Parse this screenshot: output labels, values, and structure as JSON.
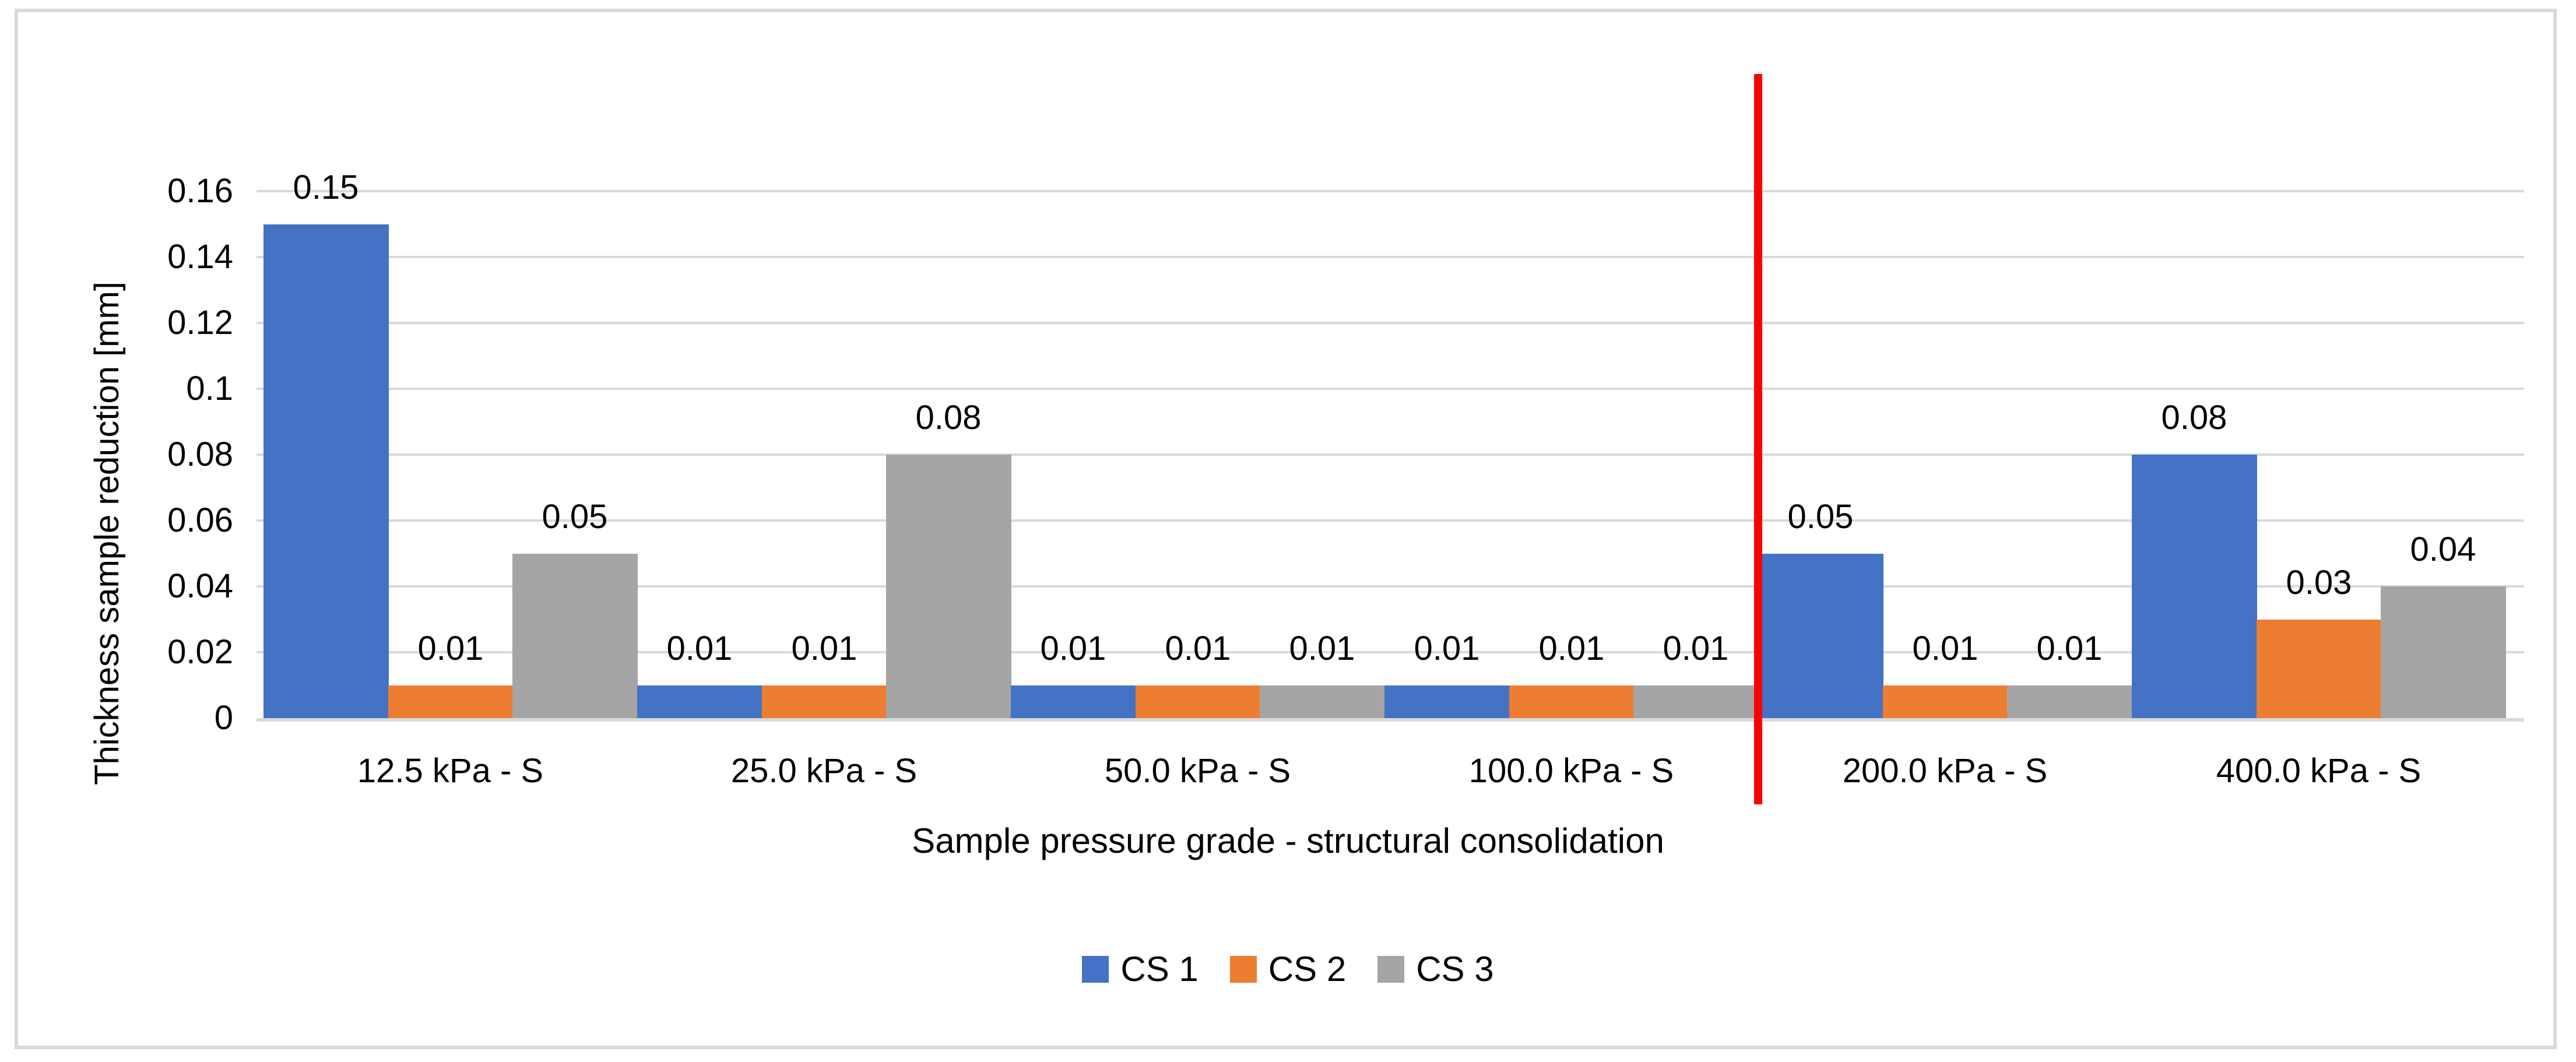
{
  "chart_data": {
    "type": "bar",
    "title": "",
    "categories": [
      "12.5 kPa - S",
      "25.0 kPa - S",
      "50.0 kPa - S",
      "100.0 kPa - S",
      "200.0 kPa - S",
      "400.0 kPa - S"
    ],
    "series": [
      {
        "name": "CS 1",
        "color": "#4472C4",
        "values": [
          0.15,
          0.01,
          0.01,
          0.01,
          0.05,
          0.08
        ]
      },
      {
        "name": "CS 2",
        "color": "#ED7D31",
        "values": [
          0.01,
          0.01,
          0.01,
          0.01,
          0.01,
          0.03
        ]
      },
      {
        "name": "CS 3",
        "color": "#A5A5A5",
        "values": [
          0.05,
          0.08,
          0.01,
          0.01,
          0.01,
          0.04
        ]
      }
    ],
    "data_labels": [
      "0.15",
      "0.01",
      "0.05",
      "0.01",
      "0.01",
      "0.08",
      "0.01",
      "0.01",
      "0.01",
      "0.01",
      "0.01",
      "0.01",
      "0.05",
      "0.01",
      "0.01",
      "0.08",
      "0.03",
      "0.04"
    ],
    "xlabel": "Sample pressure grade - structural consolidation",
    "ylabel": "Thickness sample reduction [mm]",
    "ylim": [
      0,
      0.16
    ],
    "yticks": [
      {
        "value": 0,
        "label": "0"
      },
      {
        "value": 0.02,
        "label": "0.02"
      },
      {
        "value": 0.04,
        "label": "0.04"
      },
      {
        "value": 0.06,
        "label": "0.06"
      },
      {
        "value": 0.08,
        "label": "0.08"
      },
      {
        "value": 0.1,
        "label": "0.1"
      },
      {
        "value": 0.12,
        "label": "0.12"
      },
      {
        "value": 0.14,
        "label": "0.14"
      },
      {
        "value": 0.16,
        "label": "0.16"
      }
    ],
    "grid": "horizontal",
    "legend_position": "bottom",
    "annotations": [
      {
        "type": "vertical-line",
        "color": "#FF0000",
        "after_category_index": 3,
        "description": "red divider between 100.0 kPa - S and 200.0 kPa - S"
      }
    ],
    "colors": {
      "gridline": "#D9D9D9",
      "axis_line": "#D9D9D9",
      "chart_border": "#D9D9D9",
      "text": "#000000",
      "background": "#FFFFFF",
      "divider_line": "#FF0000"
    }
  }
}
